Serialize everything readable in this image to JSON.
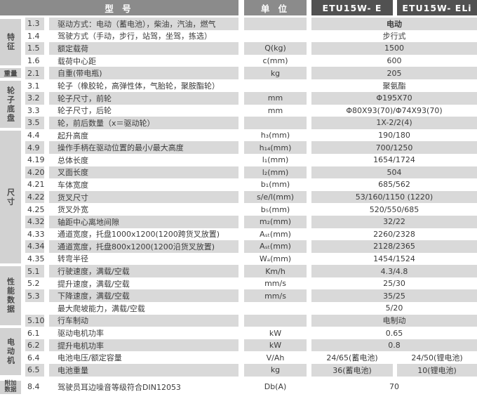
{
  "header": {
    "model_label": "型 号",
    "unit_label": "单 位",
    "model_1": "ETU15W- E",
    "model_2": "ETU15W- ELi"
  },
  "colors": {
    "header_dark": "#515151",
    "header_gray": "#8b8b8b",
    "row_stripe_gray": "#d9d9d9",
    "sidebar_gray": "#d2d2d2",
    "text": "#3b3b3b"
  },
  "sections": [
    {
      "label": "特征",
      "rows": [
        {
          "no": "1.3",
          "desc": "驱动方式：电动（蓄电池），柴油，汽油，燃气",
          "unit": "",
          "value": "电动"
        },
        {
          "no": "1.4",
          "desc": "驾驶方式（手动，步行，站驾，坐驾，拣选）",
          "unit": "",
          "value": "步行式"
        },
        {
          "no": "1.5",
          "desc": "额定载荷",
          "unit": "Q(kg)",
          "value": "1500"
        },
        {
          "no": "1.6",
          "desc": "载荷中心距",
          "unit": "c(mm)",
          "value": "600"
        }
      ]
    },
    {
      "label": "重量",
      "rows": [
        {
          "no": "2.1",
          "desc": "自重(带电瓶)",
          "unit": "kg",
          "value": "205"
        }
      ]
    },
    {
      "label": "轮子底盘",
      "rows": [
        {
          "no": "3.1",
          "desc": "轮子（橡胶轮，高弹性体，气胎轮，聚胺酯轮）",
          "unit": "",
          "value": "聚氨酯"
        },
        {
          "no": "3.2",
          "desc": "轮子尺寸，前轮",
          "unit": "mm",
          "value": "Φ195X70"
        },
        {
          "no": "3.3",
          "desc": "轮子尺寸，后轮",
          "unit": "mm",
          "value": "Φ80X93(70)/Φ74X93(70)"
        },
        {
          "no": "3.5",
          "desc": "轮，前后数量（x＝驱动轮）",
          "unit": "",
          "value": "1X-2/2(4)"
        }
      ]
    },
    {
      "label": "尺寸",
      "rows": [
        {
          "no": "4.4",
          "desc": "起升高度",
          "unit": "h₃(mm)",
          "value": "190/180"
        },
        {
          "no": "4.9",
          "desc": "操作手柄在驱动位置的最小/最大高度",
          "unit": "h₁₄(mm)",
          "value": "700/1250"
        },
        {
          "no": "4.19",
          "desc": "总体长度",
          "unit": "l₁(mm)",
          "value": "1654/1724"
        },
        {
          "no": "4.20",
          "desc": "叉面长度",
          "unit": "l₂(mm)",
          "value": "504"
        },
        {
          "no": "4.21",
          "desc": "车体宽度",
          "unit": "b₁(mm)",
          "value": "685/562"
        },
        {
          "no": "4.22",
          "desc": "货叉尺寸",
          "unit": "s/e/l(mm)",
          "value": "53/160/1150 (1220)"
        },
        {
          "no": "4.25",
          "desc": "货叉外宽",
          "unit": "b₅(mm)",
          "value": "520/550/685"
        },
        {
          "no": "4.32",
          "desc": "轴距中心离地间隙",
          "unit": "m₂(mm)",
          "value": "32/22"
        },
        {
          "no": "4.33",
          "desc": "通道宽度，托盘1000x1200(1200跨货叉放置)",
          "unit": "Aₛₜ(mm)",
          "value": "2260/2328"
        },
        {
          "no": "4.34",
          "desc": "通道宽度，托盘800x1200(1200沿货叉放置)",
          "unit": "Aₛₜ(mm)",
          "value": "2128/2365"
        },
        {
          "no": "4.35",
          "desc": "转弯半径",
          "unit": "Wₐ(mm)",
          "value": "1454/1524"
        }
      ]
    },
    {
      "label": "性能数据",
      "rows": [
        {
          "no": "5.1",
          "desc": "行驶速度，满载/空载",
          "unit": "Km/h",
          "value": "4.3/4.8"
        },
        {
          "no": "5.2",
          "desc": "提升速度，满载/空载",
          "unit": "mm/s",
          "value": "25/30"
        },
        {
          "no": "5.3",
          "desc": "下降速度，满载/空载",
          "unit": "mm/s",
          "value": "35/25"
        },
        {
          "no": "",
          "desc": "最大爬坡能力，满载/空载",
          "unit": "",
          "value": "5/20"
        },
        {
          "no": "5.10",
          "desc": "行车制动",
          "unit": "",
          "value": "电制动"
        }
      ]
    },
    {
      "label": "电动机",
      "rows": [
        {
          "no": "6.1",
          "desc": "驱动电机功率",
          "unit": "kW",
          "value": "0.65"
        },
        {
          "no": "6.2",
          "desc": "提升电机功率",
          "unit": "kW",
          "value": "0.8"
        },
        {
          "no": "6.4",
          "desc": "电池电压/额定容量",
          "unit": "V/Ah",
          "value": "24/65(蓄电池)",
          "value2": "24/50(锂电池)"
        },
        {
          "no": "6.5",
          "desc": "电池重量",
          "unit": "kg",
          "value": "36(蓄电池)",
          "value2": "10(锂电池)"
        }
      ]
    },
    {
      "label": "附加数据",
      "rows": [
        {
          "no": "8.4",
          "desc": "驾驶员耳边噪音等级符合DIN12053",
          "unit": "Db(A)",
          "value": "70"
        }
      ]
    }
  ]
}
